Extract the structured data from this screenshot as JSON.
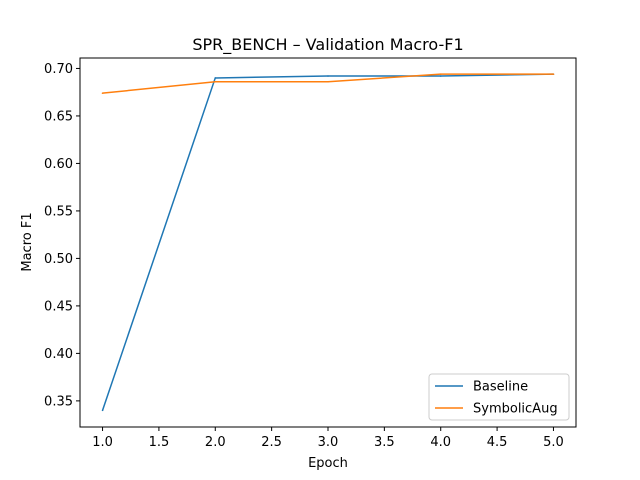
{
  "chart_data": {
    "type": "line",
    "title": "SPR_BENCH – Validation Macro-F1",
    "xlabel": "Epoch",
    "ylabel": "Macro F1",
    "xlim": [
      0.8,
      5.2
    ],
    "ylim": [
      0.3225,
      0.711
    ],
    "xticks": [
      "1.0",
      "1.5",
      "2.0",
      "2.5",
      "3.0",
      "3.5",
      "4.0",
      "4.5",
      "5.0"
    ],
    "yticks": [
      "0.35",
      "0.40",
      "0.45",
      "0.50",
      "0.55",
      "0.60",
      "0.65",
      "0.70"
    ],
    "grid": false,
    "legend_position": "lower-right",
    "series": [
      {
        "name": "Baseline",
        "color": "#1f77b4",
        "x": [
          1,
          2,
          3,
          4,
          5
        ],
        "y": [
          0.34,
          0.69,
          0.692,
          0.692,
          0.694
        ]
      },
      {
        "name": "SymbolicAug",
        "color": "#ff7f0e",
        "x": [
          1,
          2,
          3,
          4,
          5
        ],
        "y": [
          0.674,
          0.686,
          0.686,
          0.694,
          0.694
        ]
      }
    ]
  }
}
